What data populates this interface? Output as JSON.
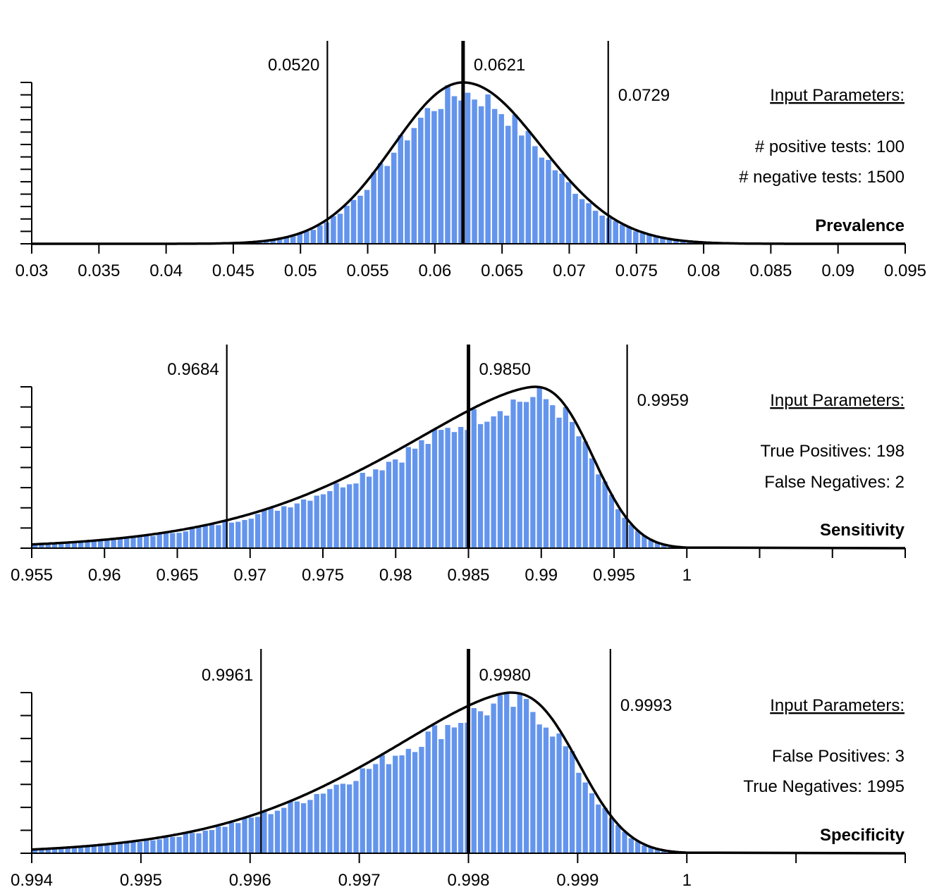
{
  "colors": {
    "bar": "#6495ed",
    "line": "#000000",
    "background": "#ffffff"
  },
  "chart_data": [
    {
      "type": "bar",
      "name": "Prevalence",
      "xlim": [
        0.03,
        0.095
      ],
      "xticks": [
        "0.03",
        "0.035",
        "0.04",
        "0.045",
        "0.05",
        "0.055",
        "0.06",
        "0.065",
        "0.07",
        "0.075",
        "0.08",
        "0.085",
        "0.09",
        "0.095"
      ],
      "xtick_values": [
        0.03,
        0.035,
        0.04,
        0.045,
        0.05,
        0.055,
        0.06,
        0.065,
        0.07,
        0.075,
        0.08,
        0.085,
        0.09,
        0.095
      ],
      "y_ticks": 14,
      "lower": 0.052,
      "lower_label": "0.0520",
      "median": 0.0621,
      "median_label": "0.0621",
      "upper": 0.0729,
      "upper_label": "0.0729",
      "density_mean": 0.0621,
      "density_sd_left": 0.0052,
      "density_sd_right": 0.0058,
      "bar_range": [
        0.0442,
        0.0848
      ],
      "bar_width": 0.0005,
      "params_title": "Input Parameters:",
      "params": [
        "# positive tests: 100",
        "# negative tests: 1500"
      ]
    },
    {
      "type": "bar",
      "name": "Sensitivity",
      "xlim": [
        0.955,
        1.0
      ],
      "xticks": [
        "0.955",
        "0.96",
        "0.965",
        "0.97",
        "0.975",
        "0.98",
        "0.985",
        "0.99",
        "0.995",
        "1",
        "",
        ""
      ],
      "xtick_values": [
        0.955,
        0.96,
        0.965,
        0.97,
        0.975,
        0.98,
        0.985,
        0.99,
        0.995,
        1.0,
        1.005,
        1.01
      ],
      "axis_end": 1.015,
      "y_ticks": 9,
      "lower": 0.9684,
      "lower_label": "0.9684",
      "median": 0.985,
      "median_label": "0.9850",
      "upper": 0.9959,
      "upper_label": "0.9959",
      "mode": 0.9895,
      "bar_range": [
        0.955,
        0.9995
      ],
      "bar_width": 0.00045,
      "params_title": "Input Parameters:",
      "params": [
        "True Positives: 198",
        "False Negatives: 2"
      ]
    },
    {
      "type": "bar",
      "name": "Specificity",
      "xlim": [
        0.994,
        1.0
      ],
      "xticks": [
        "0.994",
        "0.995",
        "0.996",
        "0.997",
        "0.998",
        "0.999",
        "1",
        "",
        ""
      ],
      "xtick_values": [
        0.994,
        0.995,
        0.996,
        0.997,
        0.998,
        0.999,
        1.0,
        1.001,
        1.002
      ],
      "axis_end": 1.002,
      "y_ticks": 8,
      "lower": 0.9961,
      "lower_label": "0.9961",
      "median": 0.998,
      "median_label": "0.9980",
      "upper": 0.9993,
      "upper_label": "0.9993",
      "mode": 0.99838,
      "bar_range": [
        0.994,
        0.99994
      ],
      "bar_width": 6e-05,
      "params_title": "Input Parameters:",
      "params": [
        "False Positives: 3",
        "True Negatives: 1995"
      ]
    }
  ]
}
